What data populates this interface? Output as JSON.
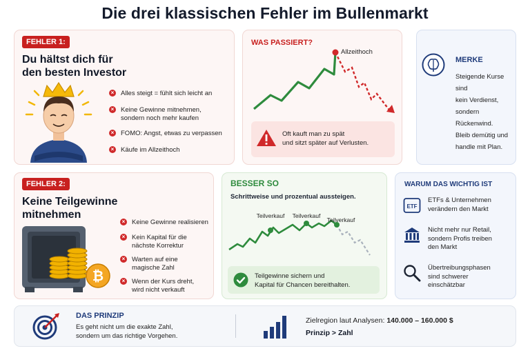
{
  "title": "Die drei klassischen Fehler im Bullenmarkt",
  "fehler1": {
    "badge": "FEHLER 1:",
    "heading_line1": "Du hältst dich für",
    "heading_line2": "den besten Investor",
    "bullets": [
      {
        "line1": "Alles steigt = fühlt sich leicht an",
        "line2": ""
      },
      {
        "line1": "Keine Gewinne mitnehmen,",
        "line2": "sondern noch mehr kaufen"
      },
      {
        "line1": "FOMO: Angst, etwas zu verpassen",
        "line2": ""
      },
      {
        "line1": "Käufe im Allzeithoch",
        "line2": ""
      }
    ]
  },
  "was_passiert": {
    "label": "WAS PASSIERT?",
    "peak_label": "Allzeithoch",
    "warning_line1": "Oft kauft man zu spät",
    "warning_line2": "und sitzt später auf Verlusten."
  },
  "merke": {
    "label": "MERKE",
    "lines": [
      "Steigende Kurse sind",
      "kein Verdienst,",
      "sondern Rückenwind.",
      "Bleib demütig und",
      "handle mit Plan."
    ]
  },
  "fehler2": {
    "badge": "FEHLER 2:",
    "heading_line1": "Keine Teilgewinne",
    "heading_line2": "mitnehmen",
    "bullets": [
      {
        "line1": "Keine Gewinne realisieren",
        "line2": "",
        "line3": ""
      },
      {
        "line1": "Kein Kapital für die",
        "line2": "nächste Korrektur",
        "line3": ""
      },
      {
        "line1": "Warten auf eine",
        "line2": "magische Zahl",
        "line3": ""
      },
      {
        "line1": "Wenn der Kurs dreht,",
        "line2": "wird nicht verkauft",
        "line3": ""
      }
    ]
  },
  "besser_so": {
    "label": "BESSER SO",
    "subtitle": "Schrittweise und prozentual aussteigen.",
    "point_labels": [
      "Teilverkauf",
      "Teilverkauf",
      "Teilverkauf"
    ],
    "note_line1": "Teilgewinne sichern und",
    "note_line2": "Kapital für Chancen bereithalten."
  },
  "warum": {
    "label": "WARUM DAS WICHTIG IST",
    "etf_badge": "ETF",
    "items": [
      {
        "icon": "etf-icon",
        "line1": "ETFs & Unternehmen",
        "line2": "verändern den Markt",
        "line3": ""
      },
      {
        "icon": "bank-icon",
        "line1": "Nicht mehr nur Retail,",
        "line2": "sondern Profis treiben",
        "line3": "den Markt"
      },
      {
        "icon": "magnifier-icon",
        "line1": "Übertreibungsphasen",
        "line2": "sind schwerer",
        "line3": "einschätzbar"
      }
    ]
  },
  "prinzip": {
    "label": "DAS PRINZIP",
    "line1": "Es geht nicht um die exakte Zahl,",
    "line2": "sondern um das richtige Vorgehen.",
    "zielregion_prefix": "Zielregion laut Analysen:",
    "zielregion_value": "140.000 – 160.000 $",
    "motto": "Prinzip > Zahl"
  },
  "colors": {
    "red": "#c8201f",
    "green": "#2e8b3d",
    "navy": "#1f3b7a"
  }
}
